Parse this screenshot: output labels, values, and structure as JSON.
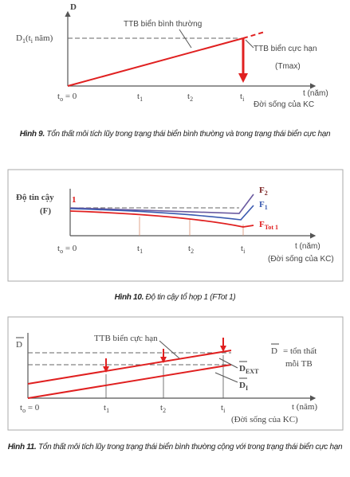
{
  "fig9": {
    "y_label": "D",
    "d1": [
      "D",
      "1",
      "(t",
      "i",
      " năm)"
    ],
    "normal": "TTB biển bình thường",
    "extreme": "TTB biển cực hạn",
    "tmax": "(Tmax)",
    "t0": [
      "t",
      "o",
      " = 0"
    ],
    "t1": [
      "t",
      "1"
    ],
    "t2": [
      "t",
      "2"
    ],
    "ti": [
      "t",
      "i"
    ],
    "t_axis": "t (năm)",
    "life": "Đời sống của KC",
    "caption_label": "Hình 9.",
    "caption_text": "Tổn thất môi tích lũy trong trạng thái biển bình thường và trong trạng thái biển cực hạn"
  },
  "fig10": {
    "y_label": "Độ tin cậy",
    "f": "(F)",
    "one": "1",
    "f2": [
      "F",
      "2"
    ],
    "f1": [
      "F",
      "1"
    ],
    "ftot": [
      "F",
      "Tot 1"
    ],
    "t0": [
      "t",
      "o",
      " = 0"
    ],
    "t1": [
      "t",
      "1"
    ],
    "t2": [
      "t",
      "2"
    ],
    "ti": [
      "t",
      "i"
    ],
    "t_axis": "t (năm)",
    "life": "(Đời sống của KC)",
    "caption_label": "Hình 10.",
    "caption_text": "Độ tin cậy tổ hợp 1 (FTot 1)"
  },
  "fig11": {
    "y_label": "D",
    "extreme": "TTB biển cực hạn",
    "dbar": "D",
    "loss": "= tổn thất",
    "per": "mỗi TB",
    "dext": [
      "D",
      "EXT"
    ],
    "di": [
      "D",
      "I"
    ],
    "t0": [
      "t",
      "o",
      " = 0"
    ],
    "t1": [
      "t",
      "1"
    ],
    "t2": [
      "t",
      "2"
    ],
    "ti": [
      "t",
      "i"
    ],
    "t_axis": "t (năm)",
    "life": "(Đời sống của KC)",
    "caption_label": "Hình 11.",
    "caption_text": "Tổn thất môi tích lũy trong trạng thái biển bình thường cộng với trong trạng thái biển cực hạn"
  }
}
